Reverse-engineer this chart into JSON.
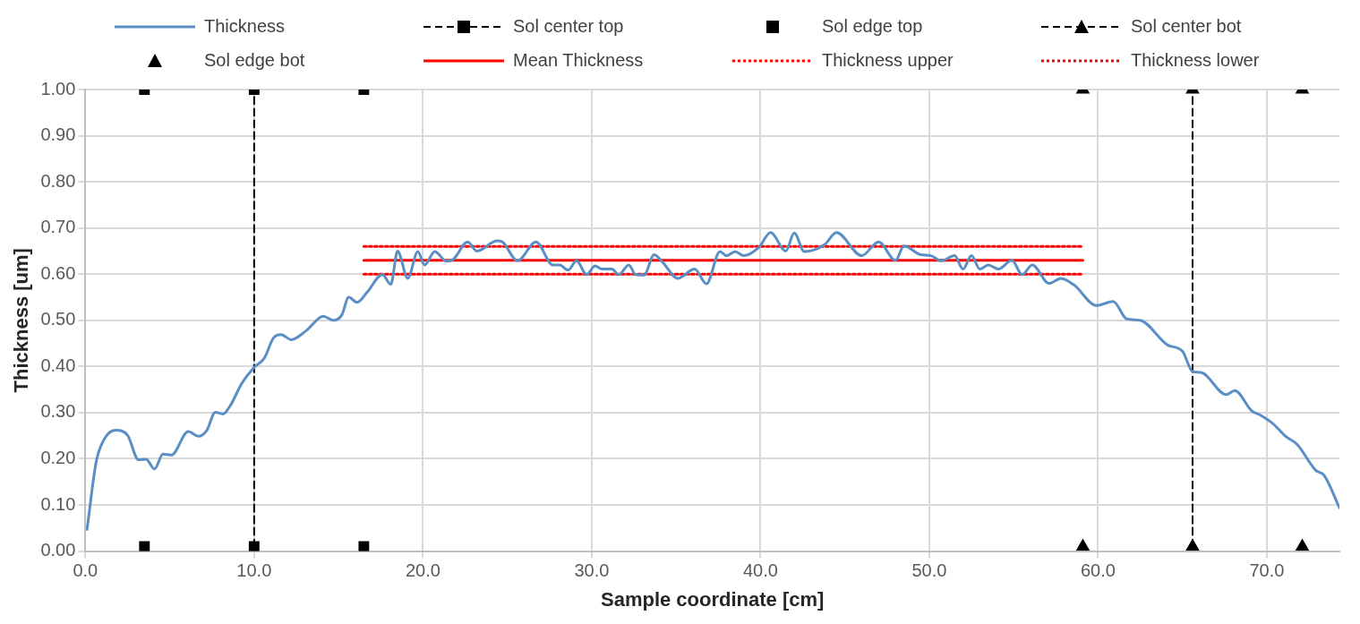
{
  "chart_data": {
    "type": "line",
    "xlabel": "Sample coordinate [cm]",
    "ylabel": "Thickness [um]",
    "xlim": [
      0,
      74.3
    ],
    "xticks": [
      {
        "value": 0,
        "label": "0.0"
      },
      {
        "value": 10,
        "label": "10.0"
      },
      {
        "value": 20,
        "label": "20.0"
      },
      {
        "value": 30,
        "label": "30.0"
      },
      {
        "value": 40,
        "label": "40.0"
      },
      {
        "value": 50,
        "label": "50.0"
      },
      {
        "value": 60,
        "label": "60.0"
      },
      {
        "value": 70,
        "label": "70.0"
      }
    ],
    "ylim": [
      0,
      1
    ],
    "yticks": [
      {
        "value": 0,
        "label": "0.00"
      },
      {
        "value": 0.1,
        "label": "0.10"
      },
      {
        "value": 0.2,
        "label": "0.20"
      },
      {
        "value": 0.3,
        "label": "0.30"
      },
      {
        "value": 0.4,
        "label": "0.40"
      },
      {
        "value": 0.5,
        "label": "0.50"
      },
      {
        "value": 0.6,
        "label": "0.60"
      },
      {
        "value": 0.7,
        "label": "0.70"
      },
      {
        "value": 0.8,
        "label": "0.80"
      },
      {
        "value": 0.9,
        "label": "0.90"
      },
      {
        "value": 1,
        "label": "1.00"
      }
    ],
    "grid": true,
    "legend": "top",
    "series": [
      {
        "name": "Thickness",
        "type": "line",
        "color": "#5a8ec4",
        "marker": "none",
        "line_style": "solid",
        "x": [
          0.1,
          0.64,
          1.18,
          1.8,
          2.5,
          3.15,
          3.6,
          4.1,
          4.6,
          5.1,
          6.1,
          6.7,
          7.2,
          7.7,
          8.15,
          8.6,
          9.26,
          10.0,
          10.6,
          11.15,
          11.6,
          12.2,
          13.1,
          14.1,
          14.7,
          15.2,
          15.6,
          16.1,
          16.7,
          17.6,
          18.1,
          18.5,
          19.1,
          19.7,
          20.1,
          20.7,
          21.4,
          21.8,
          22.65,
          23.2,
          24.4,
          24.7,
          25.6,
          26.7,
          27.7,
          28.1,
          28.6,
          29.1,
          29.7,
          30.2,
          30.6,
          31.2,
          31.6,
          32.2,
          32.6,
          33.1,
          33.7,
          34.2,
          35.1,
          36.1,
          36.8,
          37.6,
          38.0,
          38.5,
          39.0,
          39.9,
          40.6,
          41.5,
          42.0,
          42.6,
          43.8,
          44.5,
          46.0,
          47.0,
          48.0,
          48.5,
          49.5,
          50.1,
          50.7,
          51.5,
          52.0,
          52.5,
          53.0,
          53.5,
          54.1,
          54.9,
          55.5,
          56.1,
          57.1,
          57.8,
          58.6,
          59.9,
          60.9,
          61.7,
          62.5,
          64.1,
          65.0,
          65.6,
          66.1,
          67.6,
          68.1,
          69.1,
          69.6,
          70.4,
          71.1,
          71.8,
          72.9,
          73.4,
          74.3
        ],
        "values": [
          0.047,
          0.193,
          0.246,
          0.262,
          0.251,
          0.198,
          0.199,
          0.178,
          0.21,
          0.208,
          0.259,
          0.249,
          0.262,
          0.301,
          0.297,
          0.316,
          0.363,
          0.398,
          0.418,
          0.462,
          0.469,
          0.458,
          0.478,
          0.509,
          0.5,
          0.512,
          0.55,
          0.539,
          0.561,
          0.599,
          0.578,
          0.65,
          0.591,
          0.649,
          0.62,
          0.649,
          0.628,
          0.632,
          0.67,
          0.65,
          0.672,
          0.67,
          0.629,
          0.67,
          0.62,
          0.62,
          0.609,
          0.629,
          0.599,
          0.618,
          0.611,
          0.611,
          0.599,
          0.62,
          0.599,
          0.598,
          0.642,
          0.626,
          0.591,
          0.611,
          0.579,
          0.649,
          0.64,
          0.649,
          0.64,
          0.658,
          0.69,
          0.65,
          0.689,
          0.649,
          0.664,
          0.69,
          0.64,
          0.67,
          0.63,
          0.661,
          0.642,
          0.64,
          0.629,
          0.64,
          0.611,
          0.64,
          0.611,
          0.62,
          0.611,
          0.63,
          0.599,
          0.62,
          0.58,
          0.591,
          0.576,
          0.532,
          0.541,
          0.503,
          0.5,
          0.447,
          0.433,
          0.389,
          0.387,
          0.339,
          0.348,
          0.304,
          0.295,
          0.275,
          0.249,
          0.231,
          0.175,
          0.164,
          0.094
        ]
      },
      {
        "name": "Sol center top",
        "type": "line",
        "color": "#000000",
        "marker": "square",
        "line_style": "dashed",
        "x": [
          10,
          10
        ],
        "values": [
          0.01,
          1
        ]
      },
      {
        "name": "Sol edge top",
        "type": "scatter",
        "color": "#000000",
        "marker": "square",
        "x": [
          3.5,
          3.5,
          16.5,
          16.5
        ],
        "values": [
          0.01,
          1,
          0.01,
          1
        ]
      },
      {
        "name": "Sol center bot",
        "type": "line",
        "color": "#000000",
        "marker": "triangle",
        "line_style": "dashed",
        "x": [
          65.6,
          65.6
        ],
        "values": [
          0.01,
          1
        ]
      },
      {
        "name": "Sol edge bot",
        "type": "scatter",
        "color": "#000000",
        "marker": "triangle",
        "x": [
          59.1,
          59.1,
          72.1,
          72.1
        ],
        "values": [
          0.01,
          1,
          0.01,
          1
        ]
      },
      {
        "name": "Mean Thickness",
        "type": "line",
        "color": "#ff0000",
        "marker": "none",
        "line_style": "solid",
        "x": [
          16.5,
          59.1
        ],
        "values": [
          0.63,
          0.63
        ]
      },
      {
        "name": "Thickness upper",
        "type": "line",
        "color": "#ff0000",
        "marker": "none",
        "line_style": "dotted",
        "x": [
          16.5,
          59.1
        ],
        "values": [
          0.66,
          0.66
        ]
      },
      {
        "name": "Thickness lower",
        "type": "line",
        "color": "#ff0000",
        "marker": "none",
        "line_style": "dotted",
        "x": [
          16.5,
          59.1
        ],
        "values": [
          0.6,
          0.6
        ]
      }
    ]
  }
}
